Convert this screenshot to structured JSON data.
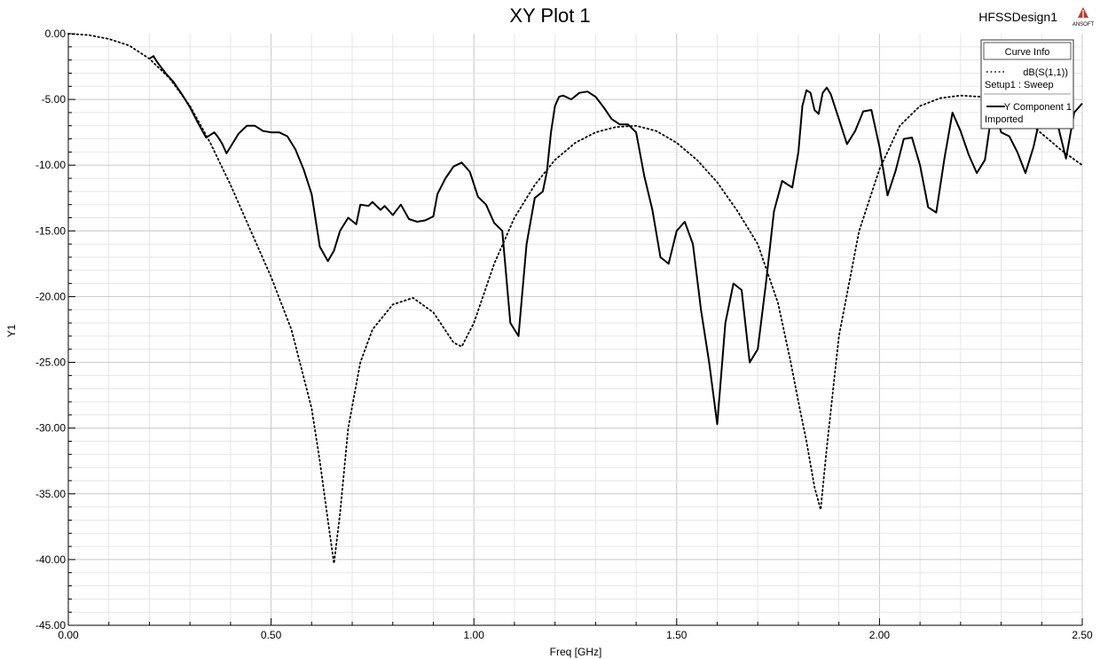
{
  "header": {
    "design_name": "HFSSDesign1",
    "logo_text": "ANSOFT"
  },
  "legend": {
    "title": "Curve Info",
    "entries": [
      {
        "line1": "dB(S(1,1))",
        "line2": "Setup1 : Sweep",
        "style": "dotted"
      },
      {
        "line1": "Y Component 1",
        "line2": "Imported",
        "style": "solid"
      }
    ]
  },
  "chart_data": {
    "type": "line",
    "title": "XY Plot 1",
    "xlabel": "Freq [GHz]",
    "ylabel": "Y1",
    "xlim": [
      0,
      2.5
    ],
    "ylim": [
      -45,
      0
    ],
    "x_ticks": [
      "0.00",
      "0.50",
      "1.00",
      "1.50",
      "2.00",
      "2.50"
    ],
    "x_tick_values": [
      0,
      0.5,
      1.0,
      1.5,
      2.0,
      2.5
    ],
    "y_ticks": [
      "0.00",
      "-5.00",
      "-10.00",
      "-15.00",
      "-20.00",
      "-25.00",
      "-30.00",
      "-35.00",
      "-40.00",
      "-45.00"
    ],
    "y_tick_values": [
      0,
      -5,
      -10,
      -15,
      -20,
      -25,
      -30,
      -35,
      -40,
      -45
    ],
    "grid": true,
    "legend_position": "top-right",
    "series": [
      {
        "name": "dB(S(1,1))",
        "style": "dotted",
        "x": [
          0,
          0.05,
          0.1,
          0.15,
          0.2,
          0.25,
          0.3,
          0.35,
          0.4,
          0.45,
          0.5,
          0.55,
          0.6,
          0.62,
          0.64,
          0.655,
          0.67,
          0.69,
          0.72,
          0.75,
          0.8,
          0.85,
          0.9,
          0.95,
          0.97,
          1.0,
          1.05,
          1.1,
          1.15,
          1.2,
          1.25,
          1.3,
          1.35,
          1.4,
          1.45,
          1.5,
          1.55,
          1.6,
          1.65,
          1.7,
          1.75,
          1.78,
          1.8,
          1.82,
          1.84,
          1.855,
          1.87,
          1.9,
          1.95,
          2.0,
          2.05,
          2.1,
          2.15,
          2.2,
          2.25,
          2.3,
          2.35,
          2.4,
          2.45,
          2.5
        ],
        "y": [
          0,
          -0.1,
          -0.4,
          -0.9,
          -1.9,
          -3.4,
          -5.5,
          -8.3,
          -11.5,
          -15.0,
          -18.5,
          -22.5,
          -28.5,
          -32.5,
          -37.0,
          -40.3,
          -36.5,
          -30.0,
          -25.0,
          -22.5,
          -20.6,
          -20.1,
          -21.2,
          -23.5,
          -23.8,
          -22.0,
          -17.5,
          -14.0,
          -11.5,
          -9.6,
          -8.3,
          -7.5,
          -7.1,
          -7.0,
          -7.4,
          -8.3,
          -9.6,
          -11.3,
          -13.5,
          -16.0,
          -20.5,
          -24.8,
          -28.0,
          -31.0,
          -34.5,
          -36.2,
          -31.5,
          -23.0,
          -15.0,
          -10.3,
          -7.0,
          -5.5,
          -4.9,
          -4.7,
          -4.8,
          -5.3,
          -6.3,
          -7.6,
          -8.9,
          -10.0
        ]
      },
      {
        "name": "Y Component 1",
        "style": "solid",
        "x": [
          0.2,
          0.21,
          0.22,
          0.24,
          0.26,
          0.28,
          0.3,
          0.32,
          0.34,
          0.36,
          0.37,
          0.38,
          0.39,
          0.4,
          0.42,
          0.44,
          0.46,
          0.48,
          0.5,
          0.52,
          0.54,
          0.56,
          0.58,
          0.6,
          0.62,
          0.64,
          0.655,
          0.67,
          0.69,
          0.71,
          0.72,
          0.74,
          0.75,
          0.77,
          0.78,
          0.8,
          0.82,
          0.84,
          0.86,
          0.88,
          0.9,
          0.91,
          0.93,
          0.95,
          0.97,
          0.99,
          1.01,
          1.03,
          1.05,
          1.07,
          1.09,
          1.11,
          1.13,
          1.15,
          1.17,
          1.18,
          1.19,
          1.2,
          1.21,
          1.22,
          1.24,
          1.26,
          1.28,
          1.3,
          1.32,
          1.34,
          1.36,
          1.38,
          1.4,
          1.42,
          1.44,
          1.46,
          1.48,
          1.5,
          1.52,
          1.54,
          1.56,
          1.58,
          1.6,
          1.62,
          1.64,
          1.66,
          1.68,
          1.7,
          1.72,
          1.74,
          1.76,
          1.77,
          1.785,
          1.8,
          1.81,
          1.82,
          1.83,
          1.84,
          1.85,
          1.86,
          1.87,
          1.88,
          1.9,
          1.92,
          1.94,
          1.96,
          1.98,
          2.0,
          2.02,
          2.04,
          2.06,
          2.08,
          2.1,
          2.12,
          2.14,
          2.16,
          2.18,
          2.2,
          2.22,
          2.24,
          2.26,
          2.28,
          2.3,
          2.32,
          2.34,
          2.36,
          2.38,
          2.4,
          2.42,
          2.44,
          2.46,
          2.48,
          2.5
        ],
        "y": [
          -1.9,
          -1.7,
          -2.2,
          -3.0,
          -3.7,
          -4.6,
          -5.6,
          -6.8,
          -7.9,
          -7.5,
          -7.9,
          -8.4,
          -9.1,
          -8.6,
          -7.6,
          -7.0,
          -7.0,
          -7.4,
          -7.5,
          -7.5,
          -7.8,
          -8.8,
          -10.3,
          -12.2,
          -16.2,
          -17.3,
          -16.5,
          -15.0,
          -14.0,
          -14.5,
          -13.0,
          -13.1,
          -12.8,
          -13.4,
          -13.1,
          -13.8,
          -13.0,
          -14.1,
          -14.3,
          -14.2,
          -13.9,
          -12.2,
          -11.0,
          -10.1,
          -9.8,
          -10.5,
          -12.4,
          -13.0,
          -14.4,
          -15.0,
          -22.0,
          -23.0,
          -16.0,
          -12.5,
          -12.0,
          -10.5,
          -7.5,
          -5.5,
          -4.8,
          -4.7,
          -5.0,
          -4.5,
          -4.4,
          -4.8,
          -5.6,
          -6.5,
          -6.9,
          -6.9,
          -7.5,
          -10.8,
          -13.4,
          -17.0,
          -17.5,
          -15.0,
          -14.3,
          -16.0,
          -21.0,
          -25.0,
          -29.7,
          -22.0,
          -19.0,
          -19.5,
          -25.0,
          -24.0,
          -19.0,
          -13.5,
          -11.2,
          -11.4,
          -11.7,
          -9.0,
          -5.5,
          -4.3,
          -4.5,
          -5.8,
          -6.1,
          -4.5,
          -4.1,
          -4.6,
          -6.5,
          -8.4,
          -7.4,
          -5.9,
          -5.8,
          -8.6,
          -12.3,
          -10.4,
          -8.0,
          -7.9,
          -10.0,
          -13.2,
          -13.6,
          -9.5,
          -6.0,
          -7.4,
          -9.2,
          -10.6,
          -9.6,
          -5.3,
          -7.5,
          -7.8,
          -9.0,
          -10.6,
          -8.6,
          -5.8,
          -5.4,
          -7.0,
          -9.5,
          -6.0,
          -5.3
        ]
      }
    ]
  }
}
